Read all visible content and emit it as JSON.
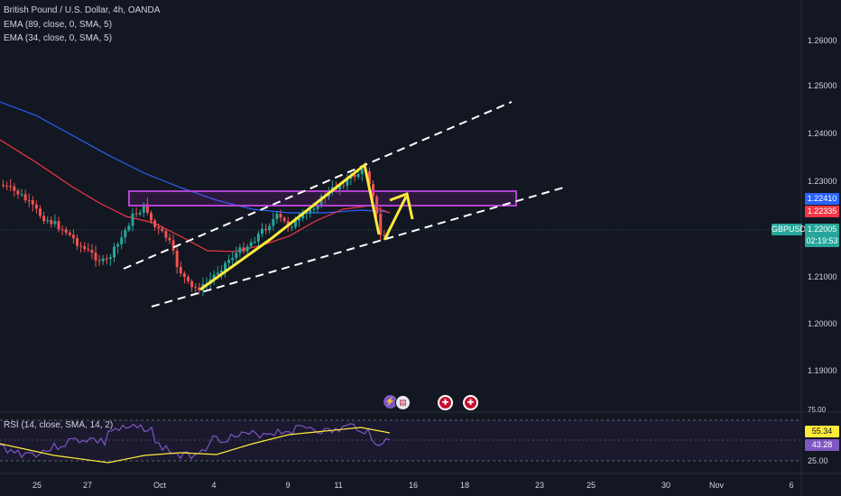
{
  "main_chart": {
    "title": "British Pound / U.S. Dollar, 4h, OANDA",
    "indicators": [
      "EMA (89, close, 0, SMA, 5)",
      "EMA (34, close, 0, SMA, 5)"
    ],
    "price_axis": [
      "1.26000",
      "1.25000",
      "1.24000",
      "1.23000",
      "1.21000",
      "1.20000",
      "1.19000"
    ],
    "tags": {
      "upper": "1.22410",
      "lower": "1.22335",
      "symbol": "GBPUSD",
      "last": "1.22005",
      "countdown": "02:19:53"
    },
    "colors": {
      "background": "#131722",
      "up": "#26a69a",
      "down": "#ef5350",
      "ema89": "#2962ff",
      "ema34": "#f23645",
      "zone": "#9c27b0",
      "arrow": "#ffeb3b",
      "trendline": "#ffffff"
    }
  },
  "rsi": {
    "title": "RSI (14, close, SMA, 14, 2)",
    "axis": [
      "75.00",
      "25.00"
    ],
    "value_tag": "55.34",
    "ma_tag": "43.28",
    "colors": {
      "rsi_line": "#7e57c2",
      "ma_line": "#ffeb3b",
      "band": "#1f1b33"
    }
  },
  "x_axis": [
    "25",
    "27",
    "Oct",
    "4",
    "9",
    "11",
    "16",
    "18",
    "23",
    "25",
    "30",
    "Nov",
    "6"
  ],
  "event_icons": [
    "lightning-event",
    "us-flag-event",
    "uk-flag-event",
    "uk-flag-event"
  ]
}
